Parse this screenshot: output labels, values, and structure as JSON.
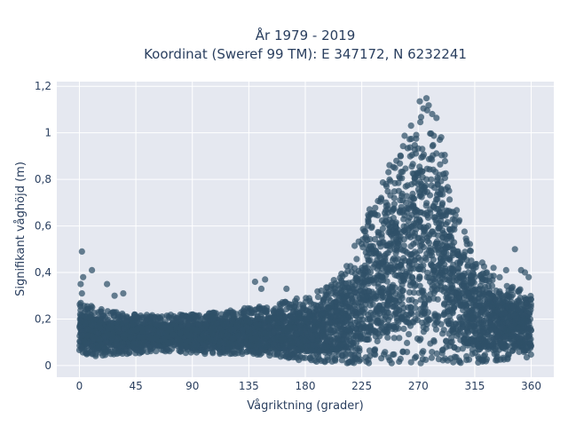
{
  "chart_data": {
    "type": "scatter",
    "title": [
      "År 1979 - 2019",
      "Koordinat (Sweref 99 TM): E 347172, N 6232241"
    ],
    "xlabel": "Vågriktning (grader)",
    "ylabel": "Signifikant våghöjd (m)",
    "xlim": [
      -18,
      378
    ],
    "ylim": [
      -0.05,
      1.22
    ],
    "xticks": [
      0,
      45,
      90,
      135,
      180,
      225,
      270,
      315,
      360
    ],
    "xtick_labels": [
      "0",
      "45",
      "90",
      "135",
      "180",
      "225",
      "270",
      "315",
      "360"
    ],
    "yticks": [
      0,
      0.2,
      0.4,
      0.6,
      0.8,
      1.0,
      1.2
    ],
    "ytick_labels": [
      "0",
      "0,2",
      "0,4",
      "0,6",
      "0,8",
      "1",
      "1,2"
    ],
    "grid": true,
    "colors": {
      "marker": "#2f5068",
      "plot_bg": "#e5e8f0",
      "grid": "#ffffff",
      "text": "#2a3f5f"
    },
    "envelope": {
      "x": [
        0,
        10,
        20,
        30,
        45,
        60,
        75,
        90,
        105,
        120,
        135,
        150,
        165,
        180,
        195,
        205,
        215,
        225,
        235,
        245,
        255,
        262,
        268,
        273,
        278,
        283,
        288,
        293,
        298,
        305,
        315,
        325,
        335,
        345,
        355,
        360
      ],
      "y_low": [
        0.05,
        0.04,
        0.04,
        0.05,
        0.05,
        0.06,
        0.06,
        0.05,
        0.05,
        0.05,
        0.05,
        0.04,
        0.03,
        0.02,
        0.01,
        0.01,
        0.01,
        0.01,
        0.01,
        0.01,
        0.01,
        0.01,
        0.01,
        0.01,
        0.01,
        0.01,
        0.01,
        0.01,
        0.01,
        0.01,
        0.01,
        0.01,
        0.02,
        0.03,
        0.03,
        0.04
      ],
      "y_high": [
        0.28,
        0.26,
        0.24,
        0.23,
        0.22,
        0.22,
        0.22,
        0.22,
        0.23,
        0.24,
        0.25,
        0.26,
        0.28,
        0.3,
        0.33,
        0.38,
        0.46,
        0.6,
        0.72,
        0.85,
        0.95,
        1.05,
        1.12,
        1.16,
        1.17,
        1.13,
        1.02,
        0.88,
        0.72,
        0.6,
        0.48,
        0.42,
        0.38,
        0.34,
        0.32,
        0.3
      ]
    },
    "outliers": [
      {
        "x": 2,
        "y": 0.49
      },
      {
        "x": 10,
        "y": 0.41
      },
      {
        "x": 3,
        "y": 0.38
      },
      {
        "x": 1,
        "y": 0.35
      },
      {
        "x": 22,
        "y": 0.35
      },
      {
        "x": 2,
        "y": 0.31
      },
      {
        "x": 28,
        "y": 0.3
      },
      {
        "x": 35,
        "y": 0.31
      },
      {
        "x": 140,
        "y": 0.36
      },
      {
        "x": 148,
        "y": 0.37
      },
      {
        "x": 145,
        "y": 0.33
      },
      {
        "x": 165,
        "y": 0.33
      },
      {
        "x": 320,
        "y": 0.38
      },
      {
        "x": 330,
        "y": 0.42
      },
      {
        "x": 340,
        "y": 0.41
      },
      {
        "x": 347,
        "y": 0.5
      },
      {
        "x": 352,
        "y": 0.41
      },
      {
        "x": 358,
        "y": 0.38
      },
      {
        "x": 355,
        "y": 0.4
      }
    ]
  }
}
